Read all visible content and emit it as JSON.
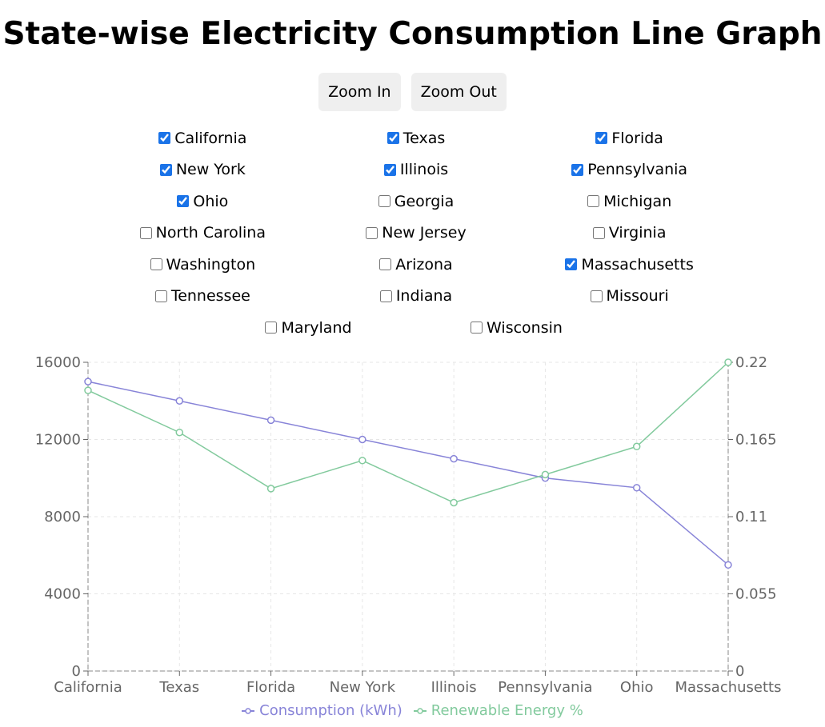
{
  "title": "State-wise Electricity Consumption Line Graph",
  "buttons": {
    "zoom_in": "Zoom In",
    "zoom_out": "Zoom Out"
  },
  "states": [
    {
      "label": "California",
      "checked": true
    },
    {
      "label": "Texas",
      "checked": true
    },
    {
      "label": "Florida",
      "checked": true
    },
    {
      "label": "New York",
      "checked": true
    },
    {
      "label": "Illinois",
      "checked": true
    },
    {
      "label": "Pennsylvania",
      "checked": true
    },
    {
      "label": "Ohio",
      "checked": true
    },
    {
      "label": "Georgia",
      "checked": false
    },
    {
      "label": "Michigan",
      "checked": false
    },
    {
      "label": "North Carolina",
      "checked": false
    },
    {
      "label": "New Jersey",
      "checked": false
    },
    {
      "label": "Virginia",
      "checked": false
    },
    {
      "label": "Washington",
      "checked": false
    },
    {
      "label": "Arizona",
      "checked": false
    },
    {
      "label": "Massachusetts",
      "checked": true
    },
    {
      "label": "Tennessee",
      "checked": false
    },
    {
      "label": "Indiana",
      "checked": false
    },
    {
      "label": "Missouri",
      "checked": false
    },
    {
      "label": "Maryland",
      "checked": false
    },
    {
      "label": "Wisconsin",
      "checked": false
    }
  ],
  "chart_data": {
    "type": "line",
    "categories": [
      "California",
      "Texas",
      "Florida",
      "New York",
      "Illinois",
      "Pennsylvania",
      "Ohio",
      "Massachusetts"
    ],
    "series": [
      {
        "name": "Consumption (kWh)",
        "axis": "left",
        "color": "#8884d8",
        "values": [
          15000,
          14000,
          13000,
          12000,
          11000,
          10000,
          9500,
          5500
        ]
      },
      {
        "name": "Renewable Energy %",
        "axis": "right",
        "color": "#82ca9d",
        "values": [
          0.2,
          0.17,
          0.13,
          0.15,
          0.12,
          0.14,
          0.16,
          0.22
        ]
      }
    ],
    "y_left": {
      "ticks": [
        "0",
        "4000",
        "8000",
        "12000",
        "16000"
      ],
      "min": 0,
      "max": 16000
    },
    "y_right": {
      "ticks": [
        "0",
        "0.055",
        "0.11",
        "0.165",
        "0.22"
      ],
      "min": 0,
      "max": 0.22
    },
    "grid": true,
    "legend_position": "bottom"
  }
}
